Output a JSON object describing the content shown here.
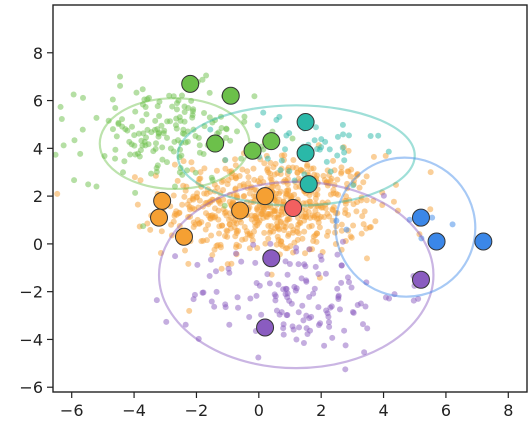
{
  "chart_data": {
    "type": "scatter",
    "title": "",
    "xlabel": "",
    "ylabel": "",
    "xlim": [
      -6.6,
      8.6
    ],
    "ylim": [
      -6.2,
      10.0
    ],
    "xticks": [
      -6,
      -4,
      -2,
      0,
      2,
      4,
      6,
      8
    ],
    "yticks": [
      -6,
      -4,
      -2,
      0,
      2,
      4,
      6,
      8
    ],
    "xtick_labels": [
      "−6",
      "−4",
      "−2",
      "0",
      "2",
      "4",
      "6",
      "8"
    ],
    "ytick_labels": [
      "−6",
      "−4",
      "−2",
      "0",
      "2",
      "4",
      "6",
      "8"
    ],
    "grid": false,
    "clusters": [
      {
        "color": "#f5a033",
        "center": [
          0.4,
          1.6
        ],
        "spread": [
          1.7,
          1.05
        ],
        "count": 620
      },
      {
        "color": "#6cc04a",
        "center": [
          -3.0,
          4.6
        ],
        "spread": [
          1.4,
          1.0
        ],
        "count": 170
      },
      {
        "color": "#2ab8a8",
        "center": [
          1.5,
          3.9
        ],
        "spread": [
          1.2,
          0.9
        ],
        "count": 45
      },
      {
        "color": "#8a5cc0",
        "center": [
          1.2,
          -2.1
        ],
        "spread": [
          1.7,
          1.2
        ],
        "count": 140
      },
      {
        "color": "#3b87e8",
        "center": [
          5.3,
          0.8
        ],
        "spread": [
          0.9,
          0.7
        ],
        "count": 8
      }
    ],
    "ellipses": [
      {
        "color": "#6cc04a",
        "center": [
          -2.7,
          4.2
        ],
        "rx": 2.4,
        "ry": 1.9
      },
      {
        "color": "#2ab8a8",
        "center": [
          1.2,
          3.7
        ],
        "rx": 3.8,
        "ry": 2.1
      },
      {
        "color": "#8a5cc0",
        "center": [
          1.2,
          -1.3
        ],
        "rx": 4.4,
        "ry": 3.9
      },
      {
        "color": "#3b87e8",
        "center": [
          4.7,
          0.7
        ],
        "rx": 5.0,
        "ry": 2.9,
        "angle": -58
      }
    ],
    "centroids": [
      {
        "x": -2.2,
        "y": 6.7,
        "color": "#6cc04a"
      },
      {
        "x": -0.9,
        "y": 6.2,
        "color": "#6cc04a"
      },
      {
        "x": -1.4,
        "y": 4.2,
        "color": "#6cc04a"
      },
      {
        "x": -0.2,
        "y": 3.9,
        "color": "#6cc04a"
      },
      {
        "x": 0.4,
        "y": 4.3,
        "color": "#6cc04a"
      },
      {
        "x": 1.5,
        "y": 5.1,
        "color": "#2ab8a8"
      },
      {
        "x": 1.5,
        "y": 3.8,
        "color": "#2ab8a8"
      },
      {
        "x": 1.6,
        "y": 2.5,
        "color": "#2ab8a8"
      },
      {
        "x": 1.1,
        "y": 1.5,
        "color": "#f26060"
      },
      {
        "x": -3.1,
        "y": 1.8,
        "color": "#f5a033"
      },
      {
        "x": -3.2,
        "y": 1.1,
        "color": "#f5a033"
      },
      {
        "x": -2.4,
        "y": 0.3,
        "color": "#f5a033"
      },
      {
        "x": -0.6,
        "y": 1.4,
        "color": "#f5a033"
      },
      {
        "x": 0.2,
        "y": 2.0,
        "color": "#f5a033"
      },
      {
        "x": 0.4,
        "y": -0.6,
        "color": "#8a5cc0"
      },
      {
        "x": 0.2,
        "y": -3.5,
        "color": "#8a5cc0"
      },
      {
        "x": 5.2,
        "y": 1.1,
        "color": "#3b87e8"
      },
      {
        "x": 5.7,
        "y": 0.1,
        "color": "#3b87e8"
      },
      {
        "x": 7.2,
        "y": 0.1,
        "color": "#3b87e8"
      },
      {
        "x": 5.2,
        "y": -1.5,
        "color": "#8a5cc0"
      }
    ]
  }
}
